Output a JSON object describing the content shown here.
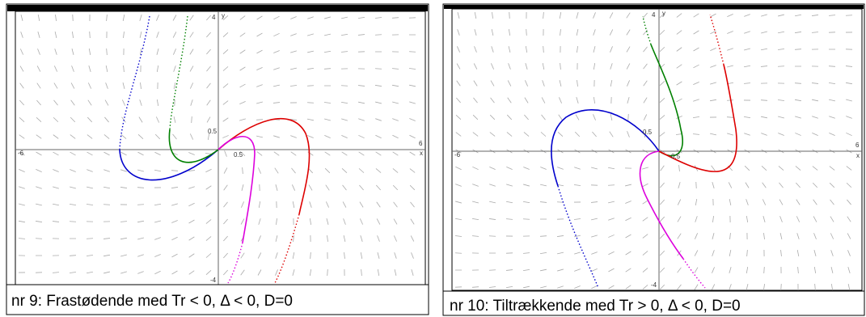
{
  "panels": [
    {
      "caption": "nr 9: Frastødende med Tr < 0,  Δ < 0, D=0",
      "labels": {
        "x_min": "-6",
        "x_max": "6",
        "y_max": "4",
        "y_min": "-4",
        "x_tick": "0.5",
        "y_tick": "0.5",
        "x_name": "x",
        "y_name": "y"
      }
    },
    {
      "caption": "nr 10: Tiltrækkende med Tr > 0,  Δ < 0, D=0",
      "labels": {
        "x_min": "-6",
        "x_max": "6",
        "y_max": "4",
        "y_min": "-4",
        "x_tick": "0.5",
        "y_tick": "0.5",
        "x_name": "x",
        "y_name": "y"
      }
    }
  ]
}
